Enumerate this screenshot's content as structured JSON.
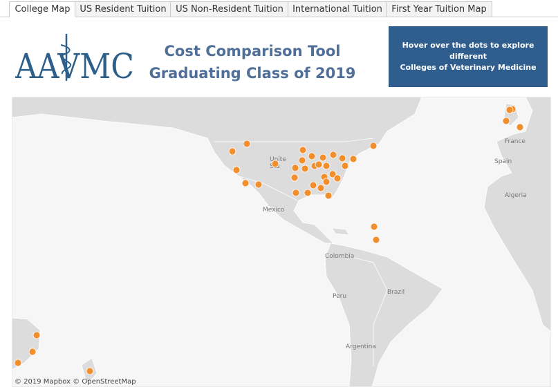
{
  "tabs": [
    "College Map",
    "US Resident Tuition",
    "US Non-Resident Tuition",
    "International Tuition",
    "First Year Tuition Map"
  ],
  "header": {
    "logo": "AAVMC",
    "title_lines": [
      "Cost Comparison Tool",
      "Graduating Class of 2019"
    ],
    "note_lines": [
      "Hover over the dots to explore different",
      "Colleges of Veterinary Medicine"
    ]
  },
  "map": {
    "labels": [
      "Unite",
      "Sta",
      "Mexico",
      "Colombia",
      "Peru",
      "Brazil",
      "Argentina",
      "Spain",
      "France",
      "Algeria"
    ],
    "attribution": "© 2019 Mapbox © OpenStreetMap"
  }
}
